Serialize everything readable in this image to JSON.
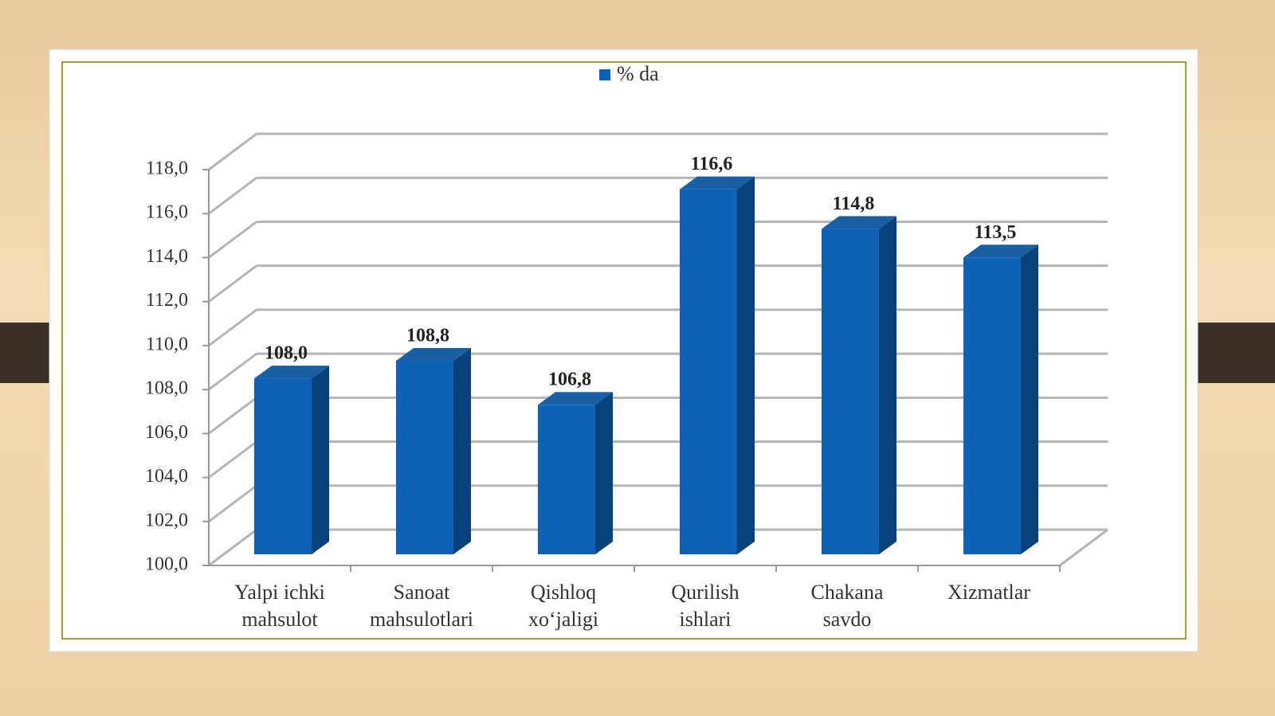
{
  "chart_data": {
    "type": "bar3d",
    "legend": "% da",
    "color": "#0b62b6",
    "categories": [
      "Yalpi ichki mahsulot",
      "Sanoat mahsulotlari",
      "Qishloq xo‘jaligi",
      "Qurilish ishlari",
      "Chakana savdo",
      "Xizmatlar"
    ],
    "values": [
      108.0,
      108.8,
      106.8,
      116.6,
      114.8,
      113.5
    ],
    "value_labels": [
      "108,0",
      "108,8",
      "106,8",
      "116,6",
      "114,8",
      "113,5"
    ],
    "ylim": [
      100,
      118
    ],
    "yticks": [
      {
        "value": 100,
        "label": "100,0"
      },
      {
        "value": 102,
        "label": "102,0"
      },
      {
        "value": 104,
        "label": "104,0"
      },
      {
        "value": 106,
        "label": "106,0"
      },
      {
        "value": 108,
        "label": "108,0"
      },
      {
        "value": 110,
        "label": "110,0"
      },
      {
        "value": 112,
        "label": "112,0"
      },
      {
        "value": 114,
        "label": "114,0"
      },
      {
        "value": 116,
        "label": "116,0"
      },
      {
        "value": 118,
        "label": "118,0"
      }
    ],
    "grid": true
  }
}
